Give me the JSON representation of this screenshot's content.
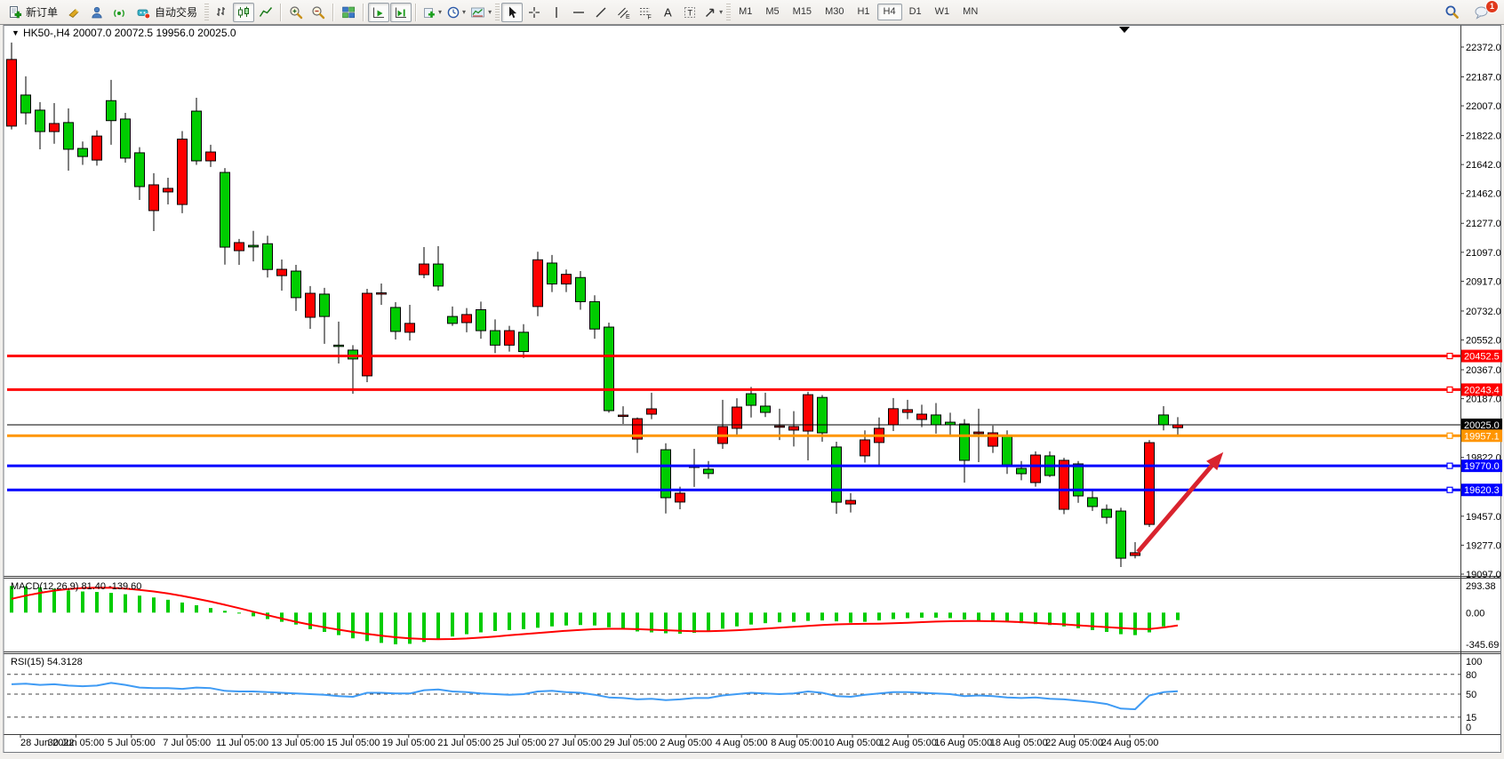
{
  "toolbar": {
    "new_order_label": "新订单",
    "auto_trading_label": "自动交易",
    "timeframes": [
      "M1",
      "M5",
      "M15",
      "M30",
      "H1",
      "H4",
      "D1",
      "W1",
      "MN"
    ],
    "active_timeframe": "H4",
    "notification_badge": "1"
  },
  "chart": {
    "symbol_arrow": "▼",
    "title": "HK50-,H4",
    "ohlc_text": "20007.0 20072.5 19956.0 20025.0",
    "up_color": "#ff0000",
    "down_color": "#00cc00",
    "price_ticks": [
      22372.0,
      22187.0,
      22007.0,
      21822.0,
      21642.0,
      21462.0,
      21277.0,
      21097.0,
      20917.0,
      20732.0,
      20552.0,
      20367.0,
      20187.0,
      19822.0,
      19457.0,
      19277.0,
      19097.0
    ],
    "hlines": [
      {
        "price": 20452.5,
        "label": "20452.5",
        "color": "#ff0000",
        "width": 3,
        "marker": true,
        "type": "resistance"
      },
      {
        "price": 20243.4,
        "label": "20243.4",
        "color": "#ff0000",
        "width": 3,
        "marker": true,
        "type": "resistance"
      },
      {
        "price": 20025.0,
        "label": "20025.0",
        "color": "#000000",
        "width": 1,
        "marker": false,
        "type": "current-price"
      },
      {
        "price": 19957.1,
        "label": "19957.1",
        "color": "#ff9500",
        "width": 3,
        "marker": true,
        "type": "level"
      },
      {
        "price": 19770.0,
        "label": "19770.0",
        "color": "#0000ff",
        "width": 3,
        "marker": true,
        "type": "support"
      },
      {
        "price": 19620.3,
        "label": "19620.3",
        "color": "#0000ff",
        "width": 3,
        "marker": true,
        "type": "support"
      }
    ],
    "time_labels": [
      "28 Jun 2022",
      "30 Jun 05:00",
      "5 Jul 05:00",
      "7 Jul 05:00",
      "11 Jul 05:00",
      "13 Jul 05:00",
      "15 Jul 05:00",
      "19 Jul 05:00",
      "21 Jul 05:00",
      "25 Jul 05:00",
      "27 Jul 05:00",
      "29 Jul 05:00",
      "2 Aug 05:00",
      "4 Aug 05:00",
      "8 Aug 05:00",
      "10 Aug 05:00",
      "12 Aug 05:00",
      "16 Aug 05:00",
      "18 Aug 05:00",
      "22 Aug 05:00",
      "24 Aug 05:00"
    ],
    "arrow": {
      "from_index": 79.2,
      "from_price": 19235,
      "to_index": 85.2,
      "to_price": 19855,
      "color": "#d9232e"
    },
    "candles": [
      [
        21881,
        22400,
        21860,
        22295
      ],
      [
        22074,
        22190,
        21891,
        21963
      ],
      [
        21980,
        22030,
        21737,
        21847
      ],
      [
        21847,
        22024,
        21771,
        21897
      ],
      [
        21903,
        21991,
        21604,
        21737
      ],
      [
        21742,
        21785,
        21640,
        21692
      ],
      [
        21670,
        21855,
        21635,
        21819
      ],
      [
        22039,
        22168,
        21765,
        21915
      ],
      [
        21925,
        21963,
        21654,
        21682
      ],
      [
        21715,
        21750,
        21422,
        21505
      ],
      [
        21356,
        21588,
        21229,
        21516
      ],
      [
        21472,
        21560,
        21394,
        21494
      ],
      [
        21394,
        21850,
        21340,
        21800
      ],
      [
        21974,
        22057,
        21640,
        21665
      ],
      [
        21665,
        21765,
        21627,
        21720
      ],
      [
        21593,
        21620,
        21020,
        21129
      ],
      [
        21107,
        21180,
        21019,
        21157
      ],
      [
        21140,
        21230,
        21040,
        21130
      ],
      [
        21150,
        21200,
        20940,
        20990
      ],
      [
        20952,
        21052,
        20859,
        20991
      ],
      [
        20980,
        21019,
        20732,
        20815
      ],
      [
        20693,
        20887,
        20621,
        20842
      ],
      [
        20837,
        20876,
        20528,
        20698
      ],
      [
        20520,
        20666,
        20406,
        20515
      ],
      [
        20489,
        20520,
        20218,
        20434
      ],
      [
        20329,
        20870,
        20290,
        20842
      ],
      [
        20840,
        20903,
        20770,
        20845
      ],
      [
        20754,
        20787,
        20555,
        20605
      ],
      [
        20600,
        20770,
        20549,
        20655
      ],
      [
        20958,
        21129,
        20936,
        21024
      ],
      [
        21024,
        21135,
        20859,
        20887
      ],
      [
        20698,
        20760,
        20640,
        20655
      ],
      [
        20660,
        20750,
        20600,
        20710
      ],
      [
        20740,
        20790,
        20560,
        20610
      ],
      [
        20610,
        20680,
        20470,
        20520
      ],
      [
        20520,
        20640,
        20480,
        20610
      ],
      [
        20600,
        20650,
        20440,
        20480
      ],
      [
        20760,
        21100,
        20700,
        21050
      ],
      [
        21030,
        21080,
        20850,
        20900
      ],
      [
        20900,
        20990,
        20850,
        20960
      ],
      [
        20940,
        20980,
        20740,
        20790
      ],
      [
        20790,
        20830,
        20560,
        20620
      ],
      [
        20632,
        20660,
        20100,
        20113
      ],
      [
        20080,
        20140,
        20030,
        20085
      ],
      [
        19936,
        20070,
        19850,
        20063
      ],
      [
        20091,
        20224,
        20060,
        20124
      ],
      [
        19870,
        19910,
        19474,
        19572
      ],
      [
        19545,
        19640,
        19500,
        19600
      ],
      [
        19760,
        19876,
        19639,
        19770
      ],
      [
        19749,
        19800,
        19690,
        19722
      ],
      [
        19909,
        20180,
        19876,
        20014
      ],
      [
        20003,
        20190,
        19960,
        20135
      ],
      [
        20218,
        20260,
        20070,
        20146
      ],
      [
        20141,
        20224,
        20073,
        20102
      ],
      [
        20010,
        20125,
        19930,
        20018
      ],
      [
        19992,
        20110,
        19890,
        20014
      ],
      [
        19986,
        20230,
        19804,
        20212
      ],
      [
        20195,
        20210,
        19920,
        19975
      ],
      [
        19887,
        19920,
        19472,
        19544
      ],
      [
        19533,
        19600,
        19480,
        19555
      ],
      [
        19832,
        19990,
        19790,
        19931
      ],
      [
        19915,
        20070,
        19766,
        20003
      ],
      [
        20025,
        20191,
        19986,
        20125
      ],
      [
        20102,
        20180,
        20060,
        20119
      ],
      [
        20058,
        20150,
        20010,
        20091
      ],
      [
        20086,
        20160,
        19970,
        20025
      ],
      [
        20041,
        20100,
        19960,
        20025
      ],
      [
        20030,
        20060,
        19666,
        19804
      ],
      [
        19970,
        20125,
        19793,
        19980
      ],
      [
        19892,
        20020,
        19850,
        19975
      ],
      [
        19958,
        19990,
        19720,
        19776
      ],
      [
        19754,
        19800,
        19680,
        19721
      ],
      [
        19666,
        19860,
        19640,
        19837
      ],
      [
        19832,
        19860,
        19700,
        19710
      ],
      [
        19500,
        19820,
        19470,
        19804
      ],
      [
        19782,
        19800,
        19540,
        19583
      ],
      [
        19572,
        19620,
        19490,
        19517
      ],
      [
        19500,
        19530,
        19410,
        19450
      ],
      [
        19489,
        19510,
        19141,
        19196
      ],
      [
        19213,
        19296,
        19195,
        19230
      ],
      [
        19406,
        19930,
        19390,
        19914
      ],
      [
        20086,
        20141,
        19990,
        20025
      ],
      [
        20007,
        20072.5,
        19956,
        20025
      ]
    ]
  },
  "macd": {
    "label": "MACD(12,26,9)",
    "values_text": "81.40 -139.60",
    "scale_labels": [
      "293.38",
      "0.00",
      "-345.69"
    ],
    "vmax": 293.38,
    "vmin": -345.69,
    "hist_color": "#00cc00",
    "signal_color": "#ff0000",
    "histogram": [
      290,
      285,
      275,
      260,
      240,
      230,
      225,
      215,
      200,
      185,
      165,
      140,
      110,
      80,
      50,
      20,
      -10,
      -40,
      -70,
      -100,
      -130,
      -180,
      -210,
      -245,
      -280,
      -310,
      -330,
      -345,
      -340,
      -320,
      -290,
      -260,
      -235,
      -215,
      -200,
      -190,
      -180,
      -165,
      -150,
      -140,
      -135,
      -140,
      -160,
      -185,
      -205,
      -215,
      -225,
      -230,
      -220,
      -200,
      -175,
      -150,
      -130,
      -115,
      -105,
      -100,
      -90,
      -85,
      -95,
      -110,
      -100,
      -85,
      -70,
      -60,
      -55,
      -55,
      -60,
      -75,
      -85,
      -90,
      -100,
      -115,
      -125,
      -135,
      -150,
      -170,
      -190,
      -210,
      -235,
      -245,
      -215,
      -150,
      -81.4
    ],
    "signal": [
      150,
      185,
      215,
      240,
      258,
      268,
      272,
      270,
      262,
      248,
      230,
      208,
      182,
      152,
      120,
      85,
      48,
      10,
      -28,
      -65,
      -100,
      -132,
      -160,
      -186,
      -210,
      -232,
      -252,
      -268,
      -280,
      -288,
      -290,
      -288,
      -282,
      -272,
      -260,
      -247,
      -234,
      -222,
      -210,
      -198,
      -188,
      -180,
      -176,
      -176,
      -180,
      -186,
      -192,
      -198,
      -202,
      -202,
      -198,
      -192,
      -184,
      -174,
      -164,
      -154,
      -144,
      -135,
      -128,
      -124,
      -122,
      -120,
      -116,
      -110,
      -104,
      -98,
      -94,
      -92,
      -92,
      -94,
      -98,
      -104,
      -112,
      -120,
      -128,
      -138,
      -148,
      -158,
      -168,
      -176,
      -178,
      -162,
      -139.6
    ]
  },
  "rsi": {
    "label": "RSI(15)",
    "value_text": "54.3128",
    "scale_labels": [
      "100",
      "80",
      "50",
      "15",
      "0"
    ],
    "scale_values": [
      100,
      80,
      50,
      15,
      0
    ],
    "levels": [
      80,
      50,
      15
    ],
    "color": "#3f9bf4",
    "values": [
      65,
      66,
      64,
      65,
      63,
      62,
      63,
      67,
      64,
      60,
      59,
      59,
      58,
      60,
      59,
      55,
      54,
      54,
      53,
      52,
      51,
      50,
      49,
      47,
      46,
      52,
      52,
      51,
      51,
      56,
      57,
      54,
      53,
      51,
      50,
      49,
      50,
      54,
      55,
      53,
      52,
      49,
      45,
      44,
      42,
      43,
      41,
      42,
      44,
      44,
      48,
      50,
      52,
      51,
      50,
      51,
      54,
      52,
      47,
      46,
      49,
      51,
      53,
      53,
      52,
      51,
      50,
      47,
      48,
      47,
      45,
      44,
      45,
      43,
      42,
      40,
      38,
      35,
      28,
      27,
      48,
      53,
      54.31
    ]
  }
}
